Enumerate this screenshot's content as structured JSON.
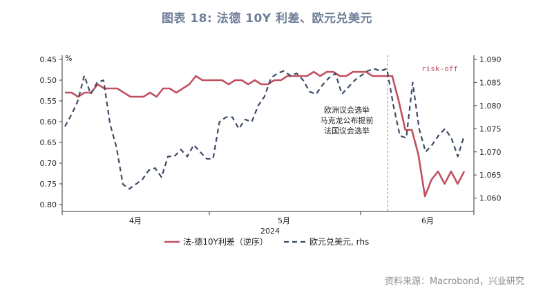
{
  "title": "图表 18: 法德 10Y 利差、欧元兑美元",
  "source": "资料来源：Macrobond，兴业研究",
  "chart_data": {
    "type": "line",
    "x_year": "2024",
    "x_ticks": [
      "4月",
      "5月",
      "6月"
    ],
    "left_axis": {
      "unit": "%",
      "ticks": [
        "0.45",
        "0.50",
        "0.55",
        "0.60",
        "0.65",
        "0.70",
        "0.75",
        "0.80"
      ],
      "ylim": [
        0.45,
        0.8
      ],
      "inverted": true
    },
    "right_axis": {
      "ticks": [
        "1.090",
        "1.085",
        "1.080",
        "1.075",
        "1.070",
        "1.065",
        "1.060"
      ],
      "ylim": [
        1.058,
        1.09
      ]
    },
    "event_line": {
      "label": "risk-off"
    },
    "annotation": [
      "欧洲议会选举",
      "马克龙公布提前",
      "法国议会选举"
    ],
    "series": [
      {
        "name": "法-德10Y利差（逆序）",
        "axis": "left",
        "color": "#c0505f",
        "style": "solid",
        "values": [
          0.53,
          0.53,
          0.54,
          0.53,
          0.53,
          0.51,
          0.52,
          0.52,
          0.52,
          0.53,
          0.54,
          0.54,
          0.54,
          0.53,
          0.54,
          0.52,
          0.52,
          0.53,
          0.52,
          0.51,
          0.49,
          0.5,
          0.5,
          0.5,
          0.5,
          0.51,
          0.5,
          0.5,
          0.51,
          0.5,
          0.51,
          0.51,
          0.5,
          0.5,
          0.49,
          0.49,
          0.49,
          0.49,
          0.48,
          0.49,
          0.48,
          0.48,
          0.49,
          0.49,
          0.48,
          0.48,
          0.48,
          0.49,
          0.49,
          0.49,
          0.49,
          0.55,
          0.62,
          0.62,
          0.68,
          0.78,
          0.74,
          0.72,
          0.75,
          0.72,
          0.75,
          0.72
        ]
      },
      {
        "name": "欧元兑美元, rhs",
        "axis": "right",
        "color": "#3b4a66",
        "style": "dashed",
        "values": [
          1.0755,
          1.078,
          1.081,
          1.0865,
          1.0825,
          1.085,
          1.0855,
          1.076,
          1.071,
          1.063,
          1.062,
          1.063,
          1.064,
          1.066,
          1.0665,
          1.0645,
          1.069,
          1.069,
          1.0705,
          1.069,
          1.0715,
          1.07,
          1.0685,
          1.0685,
          1.0765,
          1.0775,
          1.0775,
          1.075,
          1.077,
          1.0765,
          1.08,
          1.082,
          1.086,
          1.087,
          1.0875,
          1.0865,
          1.087,
          1.0855,
          1.083,
          1.0825,
          1.0845,
          1.086,
          1.087,
          1.0825,
          1.084,
          1.0855,
          1.0865,
          1.0875,
          1.088,
          1.0875,
          1.088,
          1.08,
          1.0735,
          1.073,
          1.085,
          1.075,
          1.07,
          1.0715,
          1.0735,
          1.075,
          1.073,
          1.069,
          1.0735
        ]
      }
    ]
  }
}
